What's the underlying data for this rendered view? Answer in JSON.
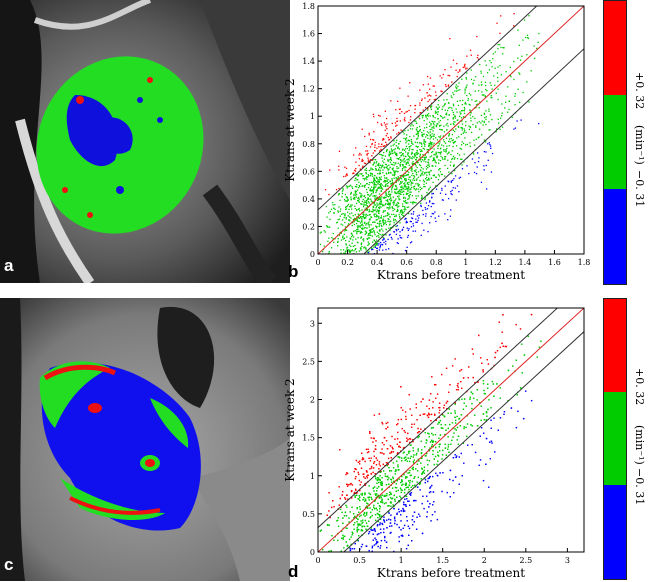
{
  "panels": {
    "a": {
      "letter": "a"
    },
    "b": {
      "letter": "b"
    },
    "c": {
      "letter": "c"
    },
    "d": {
      "letter": "d"
    }
  },
  "colors": {
    "increase": "#ff0000",
    "nochange": "#00cc00",
    "decrease": "#0000ff",
    "unity_line": "#dd2222",
    "bound_line": "#333333"
  },
  "colorbars": {
    "top": {
      "upper_label": "+0. 32",
      "middle_label": "(min⁻¹)",
      "lower_label": "−0. 31"
    },
    "bottom": {
      "upper_label": "+0. 32",
      "middle_label": "(min⁻¹)",
      "lower_label": "−0. 31"
    }
  },
  "chart_data": [
    {
      "type": "scatter",
      "panel": "b",
      "xlabel": "Ktrans before treatment",
      "ylabel": "Ktrans at week 2",
      "xlim": [
        0,
        1.8
      ],
      "ylim": [
        0,
        1.8
      ],
      "xticks": [
        "0",
        "0.2",
        "0.4",
        "0.6",
        "0.8",
        "1",
        "1.2",
        "1.4",
        "1.6",
        "1.8"
      ],
      "yticks": [
        "0",
        "0.2",
        "0.4",
        "0.6",
        "0.8",
        "1",
        "1.2",
        "1.4",
        "1.6",
        "1.8"
      ],
      "xtick_values": [
        0,
        0.2,
        0.4,
        0.6,
        0.8,
        1.0,
        1.2,
        1.4,
        1.6,
        1.8
      ],
      "ytick_values": [
        0,
        0.2,
        0.4,
        0.6,
        0.8,
        1.0,
        1.2,
        1.4,
        1.6,
        1.8
      ],
      "threshold": 0.32,
      "x_spread_max": 1.5,
      "lines": [
        {
          "kind": "unity",
          "slope": 1,
          "intercept": 0
        },
        {
          "kind": "upper",
          "slope": 1,
          "intercept": 0.32
        },
        {
          "kind": "lower",
          "slope": 1,
          "intercept": -0.31
        }
      ]
    },
    {
      "type": "scatter",
      "panel": "d",
      "xlabel": "Ktrans before treatment",
      "ylabel": "Ktrans at week 2",
      "xlim": [
        0,
        3.2
      ],
      "ylim": [
        0,
        3.2
      ],
      "xticks": [
        "0",
        "0.5",
        "1",
        "1.5",
        "2",
        "2.5",
        "3"
      ],
      "yticks": [
        "0",
        "0.5",
        "1",
        "1.5",
        "2",
        "2.5",
        "3"
      ],
      "xtick_values": [
        0,
        0.5,
        1.0,
        1.5,
        2.0,
        2.5,
        3.0
      ],
      "ytick_values": [
        0,
        0.5,
        1.0,
        1.5,
        2.0,
        2.5,
        3.0
      ],
      "threshold": 0.32,
      "x_spread_max": 2.7,
      "lines": [
        {
          "kind": "unity",
          "slope": 1,
          "intercept": 0
        },
        {
          "kind": "upper",
          "slope": 1,
          "intercept": 0.32
        },
        {
          "kind": "lower",
          "slope": 1,
          "intercept": -0.31
        }
      ]
    }
  ]
}
